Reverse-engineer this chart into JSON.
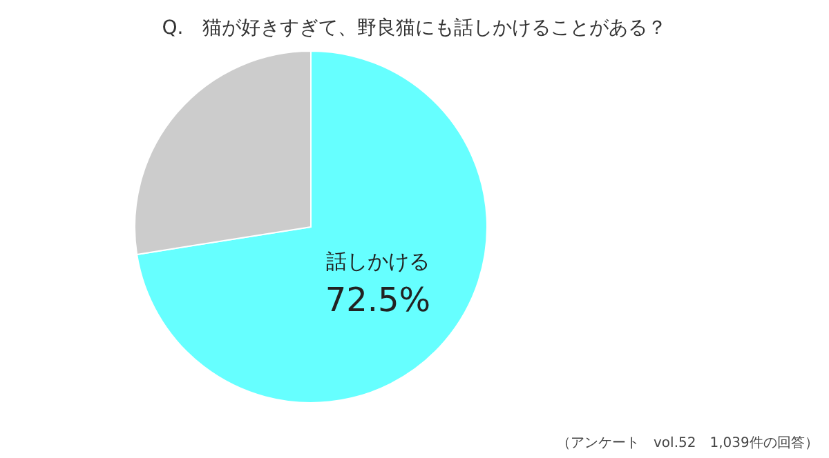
{
  "chart_data": {
    "type": "pie",
    "title": "Q.　猫が好きすぎて、野良猫にも話しかけることがある？",
    "categories": [
      "話しかける",
      null
    ],
    "values": [
      72.5,
      27.5
    ],
    "value_labels": [
      "72.5%",
      null
    ],
    "colors": [
      "#66ffff",
      "#cccccc"
    ],
    "legend": false,
    "annotations": [
      "（アンケート　vol.52　1,039件の回答）"
    ]
  }
}
